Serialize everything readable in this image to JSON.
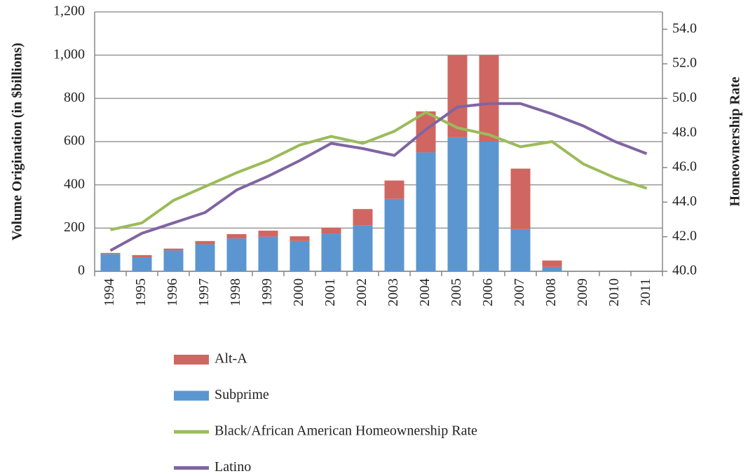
{
  "chart_data": {
    "type": "bar",
    "ylabel": "Volume Origination (in $billions)",
    "y2label": "Homeownership Rate",
    "categories": [
      "1994",
      "1995",
      "1996",
      "1997",
      "1998",
      "1999",
      "2000",
      "2001",
      "2002",
      "2003",
      "2004",
      "2005",
      "2006",
      "2007",
      "2008",
      "2009",
      "2010",
      "2011"
    ],
    "series": [
      {
        "name": "Alt-A",
        "type": "bar",
        "color": "#d06661",
        "values": [
          5,
          10,
          8,
          15,
          20,
          28,
          22,
          27,
          75,
          85,
          190,
          380,
          400,
          280,
          30,
          null,
          null,
          null
        ]
      },
      {
        "name": "Subprime",
        "type": "bar",
        "color": "#5b96d0",
        "values": [
          80,
          65,
          97,
          125,
          152,
          160,
          140,
          175,
          213,
          335,
          550,
          620,
          600,
          195,
          20,
          null,
          null,
          null
        ]
      },
      {
        "name": "Black/African American Homeownership Rate",
        "type": "line",
        "axis": "y2",
        "color": "#9bbb59",
        "values": [
          42.4,
          42.8,
          44.1,
          44.9,
          45.7,
          46.4,
          47.3,
          47.8,
          47.4,
          48.1,
          49.2,
          48.3,
          47.9,
          47.2,
          47.5,
          46.2,
          45.4,
          44.8
        ]
      },
      {
        "name": "Latino",
        "type": "line",
        "axis": "y2",
        "color": "#8064a2",
        "values": [
          41.2,
          42.2,
          42.8,
          43.4,
          44.7,
          45.5,
          46.4,
          47.4,
          47.1,
          46.7,
          48.2,
          49.5,
          49.7,
          49.7,
          49.1,
          48.4,
          47.5,
          46.8
        ]
      }
    ],
    "ylim": [
      0,
      1200
    ],
    "yticks": [
      0,
      200,
      400,
      600,
      800,
      {
        "value": 1000,
        "label": "1,000"
      },
      {
        "value": 1200,
        "label": "1,200"
      }
    ],
    "y2lim": [
      40,
      55
    ],
    "y2ticks": [
      {
        "value": 40,
        "label": "40.0"
      },
      {
        "value": 42,
        "label": "42.0"
      },
      {
        "value": 44,
        "label": "44.0"
      },
      {
        "value": 46,
        "label": "46.0"
      },
      {
        "value": 48,
        "label": "48.0"
      },
      {
        "value": 50,
        "label": "50.0"
      },
      {
        "value": 52,
        "label": "52.0"
      },
      {
        "value": 54,
        "label": "54.0"
      }
    ],
    "grid": true
  }
}
